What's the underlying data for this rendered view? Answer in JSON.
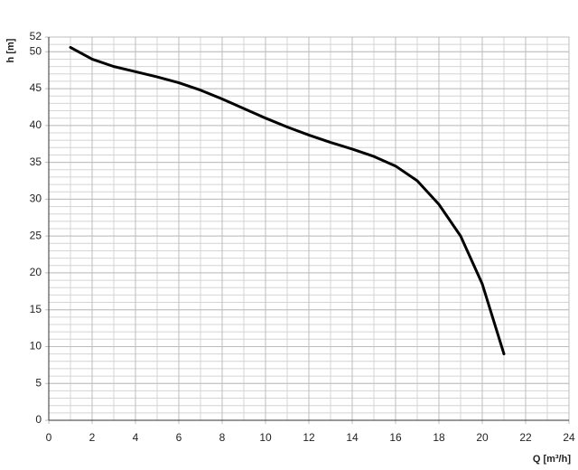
{
  "chart_data": {
    "type": "line",
    "x_label": "Q [m³/h]",
    "y_label": "h [m]",
    "series": [
      {
        "color": "#000000",
        "x": [
          1,
          2,
          3,
          4,
          5,
          6,
          7,
          8,
          9,
          10,
          11,
          12,
          13,
          14,
          15,
          16,
          17,
          18,
          19,
          20,
          21
        ],
        "values": [
          50.6,
          49,
          48,
          47.3,
          46.6,
          45.8,
          44.8,
          43.6,
          42.3,
          41,
          39.8,
          38.7,
          37.7,
          36.8,
          35.8,
          34.5,
          32.5,
          29.3,
          25,
          18.5,
          9
        ]
      }
    ],
    "xlim": [
      0,
      24
    ],
    "ylim": [
      0,
      52
    ],
    "xticks": [
      0,
      2,
      4,
      6,
      8,
      10,
      12,
      14,
      16,
      18,
      20,
      22,
      24
    ],
    "yticks": [
      0,
      5,
      10,
      15,
      20,
      25,
      30,
      35,
      40,
      45,
      50,
      52
    ],
    "grid": true,
    "minor_grid": {
      "x": 1,
      "y": 1
    }
  }
}
